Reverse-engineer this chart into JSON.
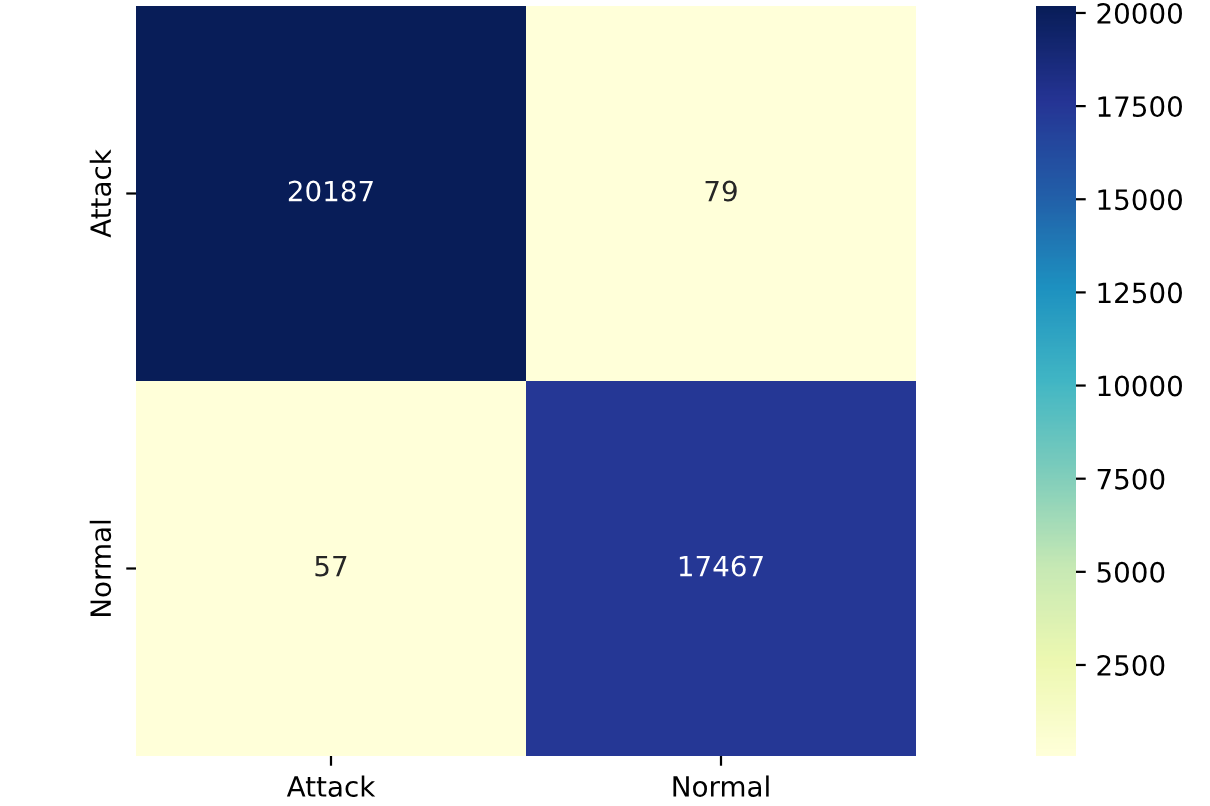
{
  "chart_data": {
    "type": "heatmap",
    "categories": [
      "Attack",
      "Normal"
    ],
    "y_categories": [
      "Attack",
      "Normal"
    ],
    "cells": [
      [
        20187,
        79
      ],
      [
        57,
        17467
      ]
    ],
    "data_labels": true,
    "clim": [
      57,
      20187
    ],
    "cticks": [
      2500,
      5000,
      7500,
      10000,
      12500,
      15000,
      17500,
      20000
    ]
  }
}
